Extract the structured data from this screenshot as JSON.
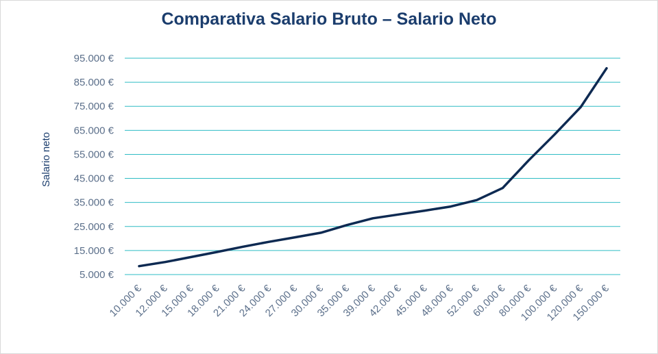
{
  "chart_data": {
    "type": "line",
    "title": "Comparativa Salario Bruto – Salario Neto",
    "xlabel": "",
    "ylabel": "Salario neto",
    "categories": [
      "10.000 €",
      "12.000 €",
      "15.000 €",
      "18.000 €",
      "21.000 €",
      "24.000 €",
      "27.000 €",
      "30.000 €",
      "35.000 €",
      "39.000 €",
      "42.000 €",
      "45.000 €",
      "48.000 €",
      "52.000 €",
      "60.000 €",
      "80.000 €",
      "100.000 €",
      "120.000 €",
      "150.000 €"
    ],
    "y_ticks": [
      "5.000 €",
      "15.000 €",
      "25.000 €",
      "35.000 €",
      "45.000 €",
      "55.000 €",
      "65.000 €",
      "75.000 €",
      "85.000 €",
      "95.000 €"
    ],
    "ylim": [
      5000,
      95000
    ],
    "grid": true,
    "series": [
      {
        "values": [
          8500,
          10200,
          12300,
          14400,
          16600,
          18600,
          20500,
          22400,
          25600,
          28400,
          30000,
          31600,
          33300,
          36000,
          41000,
          52500,
          63300,
          74600,
          90800
        ],
        "color": "#0e2a52"
      }
    ],
    "colors": {
      "grid": "#2ebcc4",
      "title": "#1b3d6d",
      "tick": "#5b6f8a"
    }
  }
}
